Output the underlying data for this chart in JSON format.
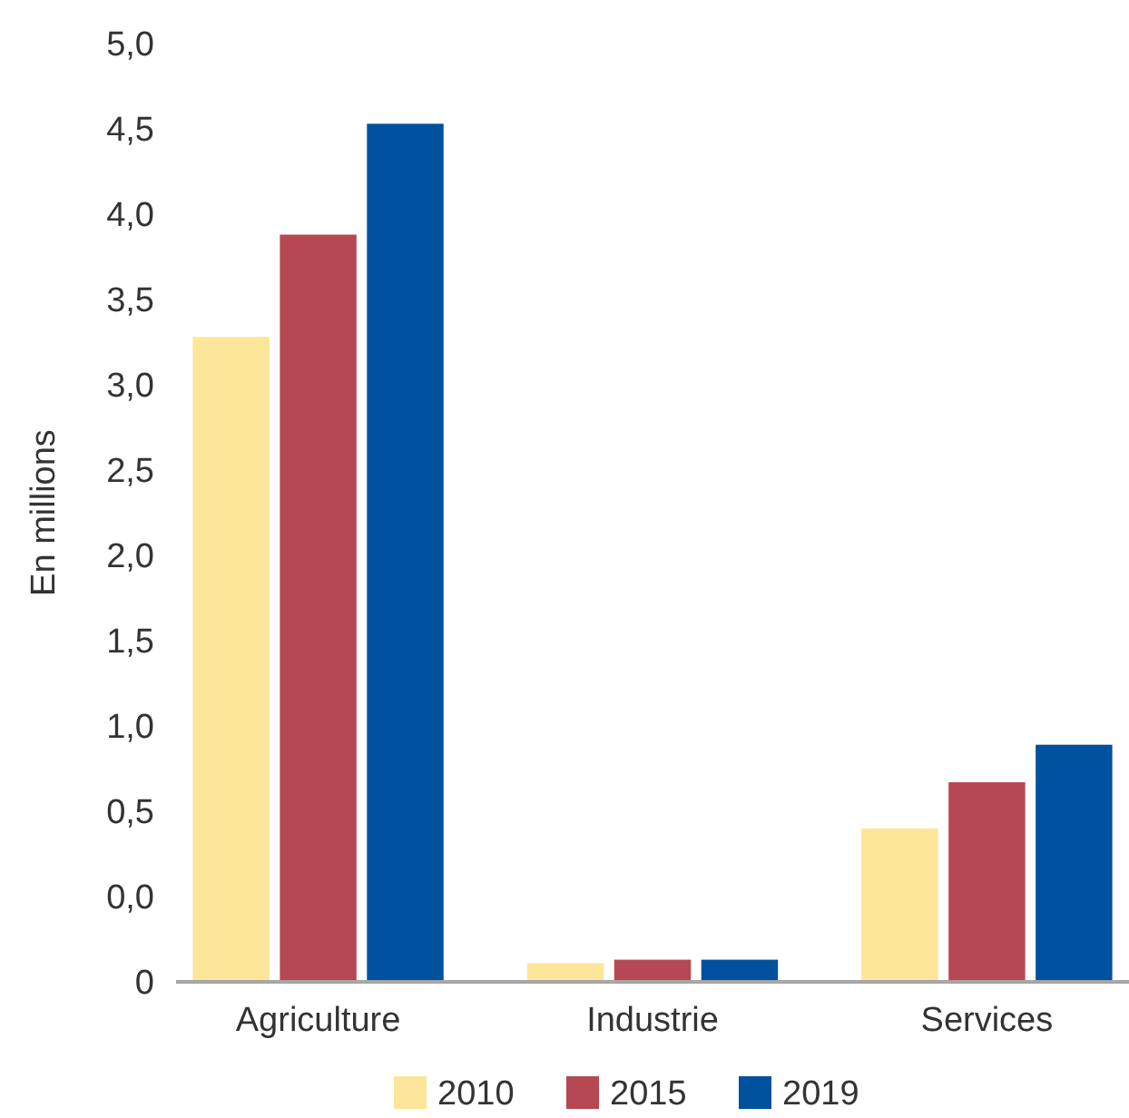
{
  "chart_data": {
    "type": "bar",
    "ylabel": "En millions",
    "categories": [
      "Agriculture",
      "Industrie",
      "Services"
    ],
    "series": [
      {
        "name": "2010",
        "color": "#fde699",
        "base": [
          -0.5,
          -0.5,
          -0.5
        ],
        "values": [
          3.78,
          0.11,
          0.9
        ]
      },
      {
        "name": "2015",
        "color": "#b64853",
        "base": [
          -0.5,
          -0.5,
          -0.5
        ],
        "values": [
          4.38,
          0.13,
          1.17
        ]
      },
      {
        "name": "2019",
        "color": "#00519e",
        "base": [
          -0.5,
          -0.5,
          -0.5
        ],
        "values": [
          5.03,
          0.13,
          1.39
        ]
      }
    ],
    "ylim": [
      -0.5,
      5
    ],
    "yticks": [
      {
        "value": -0.5,
        "label": "0"
      },
      {
        "value": 0,
        "label": "0,0"
      },
      {
        "value": 0.5,
        "label": "0,5"
      },
      {
        "value": 1,
        "label": "1,0"
      },
      {
        "value": 1.5,
        "label": "1,5"
      },
      {
        "value": 2,
        "label": "2,0"
      },
      {
        "value": 2.5,
        "label": "2,5"
      },
      {
        "value": 3,
        "label": "3,0"
      },
      {
        "value": 3.5,
        "label": "3,5"
      },
      {
        "value": 4,
        "label": "4,0"
      },
      {
        "value": 4.5,
        "label": "4,5"
      },
      {
        "value": 5,
        "label": "5,0"
      }
    ],
    "grid": false,
    "legend": "bottom"
  }
}
